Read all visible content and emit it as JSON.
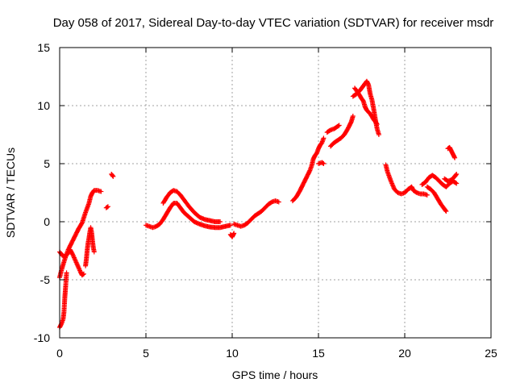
{
  "chart_data": {
    "type": "scatter",
    "title": "Day 058 of 2017, Sidereal Day-to-day VTEC variation (SDTVAR) for receiver msdr",
    "xlabel": "GPS time / hours",
    "ylabel": "SDTVAR / TECUs",
    "xlim": [
      0,
      25
    ],
    "ylim": [
      -10,
      15
    ],
    "xticks": [
      0,
      5,
      10,
      15,
      20,
      25
    ],
    "yticks": [
      -10,
      -5,
      0,
      5,
      10,
      15
    ],
    "xtick_labels": [
      "0",
      "5",
      "10",
      "15",
      "20",
      "25"
    ],
    "ytick_labels": [
      "-10",
      "-5",
      "0",
      "5",
      "10",
      "15"
    ],
    "grid": true,
    "marker": "+",
    "series": [
      {
        "color": "#ff0000",
        "segments": [
          [
            [
              0.0,
              -9.1
            ],
            [
              0.1,
              -8.8
            ],
            [
              0.2,
              -8.4
            ],
            [
              0.25,
              -7.8
            ],
            [
              0.3,
              -6.5
            ],
            [
              0.35,
              -5.5
            ],
            [
              0.4,
              -4.4
            ]
          ],
          [
            [
              0.0,
              -4.8
            ],
            [
              0.1,
              -4.2
            ],
            [
              0.2,
              -3.7
            ],
            [
              0.35,
              -3.0
            ],
            [
              0.5,
              -2.4
            ],
            [
              0.7,
              -1.8
            ],
            [
              0.9,
              -1.2
            ],
            [
              1.1,
              -0.6
            ],
            [
              1.3,
              -0.1
            ],
            [
              1.5,
              0.8
            ],
            [
              1.6,
              1.2
            ],
            [
              1.7,
              1.6
            ],
            [
              1.8,
              2.2
            ],
            [
              1.9,
              2.5
            ],
            [
              2.0,
              2.7
            ],
            [
              2.2,
              2.7
            ],
            [
              2.4,
              2.6
            ]
          ],
          [
            [
              0.0,
              -2.6
            ],
            [
              0.15,
              -2.9
            ],
            [
              0.3,
              -3.0
            ],
            [
              0.45,
              -2.8
            ],
            [
              0.6,
              -2.4
            ],
            [
              0.75,
              -2.8
            ],
            [
              0.9,
              -3.3
            ],
            [
              1.05,
              -3.8
            ],
            [
              1.2,
              -4.3
            ],
            [
              1.3,
              -4.6
            ],
            [
              1.4,
              -4.5
            ]
          ],
          [
            [
              1.5,
              -3.8
            ],
            [
              1.55,
              -3.2
            ],
            [
              1.6,
              -2.4
            ],
            [
              1.65,
              -1.8
            ],
            [
              1.7,
              -1.4
            ],
            [
              1.75,
              -0.9
            ],
            [
              1.8,
              -0.5
            ],
            [
              1.85,
              -0.9
            ],
            [
              1.9,
              -1.6
            ],
            [
              1.95,
              -2.2
            ],
            [
              2.0,
              -2.6
            ]
          ],
          [
            [
              2.7,
              1.2
            ],
            [
              2.8,
              1.3
            ]
          ],
          [
            [
              3.0,
              4.1
            ],
            [
              3.1,
              3.9
            ]
          ],
          [
            [
              5.0,
              -0.3
            ],
            [
              5.2,
              -0.4
            ],
            [
              5.4,
              -0.5
            ],
            [
              5.6,
              -0.4
            ],
            [
              5.8,
              -0.2
            ],
            [
              6.0,
              0.2
            ],
            [
              6.2,
              0.7
            ],
            [
              6.4,
              1.2
            ],
            [
              6.6,
              1.6
            ],
            [
              6.8,
              1.6
            ],
            [
              7.0,
              1.2
            ],
            [
              7.2,
              0.8
            ],
            [
              7.5,
              0.4
            ],
            [
              7.8,
              0.0
            ],
            [
              8.1,
              -0.2
            ],
            [
              8.4,
              -0.35
            ],
            [
              8.7,
              -0.45
            ],
            [
              9.0,
              -0.5
            ],
            [
              9.3,
              -0.5
            ],
            [
              9.6,
              -0.4
            ],
            [
              9.9,
              -0.3
            ]
          ],
          [
            [
              6.0,
              1.6
            ],
            [
              6.2,
              2.1
            ],
            [
              6.4,
              2.5
            ],
            [
              6.6,
              2.7
            ],
            [
              6.8,
              2.6
            ],
            [
              7.0,
              2.3
            ],
            [
              7.2,
              1.9
            ],
            [
              7.5,
              1.3
            ],
            [
              7.8,
              0.8
            ],
            [
              8.1,
              0.4
            ],
            [
              8.4,
              0.2
            ],
            [
              8.7,
              0.1
            ],
            [
              9.0,
              0.0
            ],
            [
              9.3,
              0.0
            ]
          ],
          [
            [
              9.9,
              -1.1
            ],
            [
              10.0,
              -1.3
            ],
            [
              10.1,
              -1.0
            ]
          ],
          [
            [
              10.1,
              -0.2
            ],
            [
              10.3,
              -0.3
            ],
            [
              10.5,
              -0.4
            ],
            [
              10.7,
              -0.3
            ],
            [
              10.9,
              -0.1
            ],
            [
              11.1,
              0.2
            ],
            [
              11.3,
              0.5
            ],
            [
              11.5,
              0.7
            ],
            [
              11.7,
              0.9
            ],
            [
              11.9,
              1.2
            ],
            [
              12.1,
              1.5
            ],
            [
              12.3,
              1.7
            ],
            [
              12.5,
              1.8
            ],
            [
              12.7,
              1.7
            ]
          ],
          [
            [
              13.5,
              1.8
            ],
            [
              13.7,
              2.1
            ],
            [
              13.9,
              2.6
            ],
            [
              14.1,
              3.2
            ],
            [
              14.3,
              3.8
            ],
            [
              14.5,
              4.4
            ],
            [
              14.6,
              4.8
            ],
            [
              14.7,
              5.4
            ],
            [
              14.8,
              5.7
            ],
            [
              14.9,
              5.9
            ],
            [
              15.0,
              6.3
            ],
            [
              15.1,
              6.6
            ],
            [
              15.2,
              6.8
            ],
            [
              15.3,
              7.2
            ]
          ],
          [
            [
              15.0,
              5.0
            ],
            [
              15.2,
              5.1
            ],
            [
              15.3,
              5.0
            ]
          ],
          [
            [
              15.5,
              7.7
            ],
            [
              15.7,
              7.9
            ],
            [
              15.9,
              8.0
            ],
            [
              16.1,
              8.2
            ],
            [
              16.2,
              8.3
            ]
          ],
          [
            [
              15.7,
              6.5
            ],
            [
              15.9,
              6.8
            ],
            [
              16.1,
              7.0
            ],
            [
              16.3,
              7.2
            ],
            [
              16.5,
              7.5
            ],
            [
              16.7,
              8.0
            ],
            [
              16.9,
              8.6
            ],
            [
              17.0,
              9.1
            ]
          ],
          [
            [
              17.0,
              10.8
            ],
            [
              17.2,
              11.0
            ],
            [
              17.4,
              11.3
            ],
            [
              17.5,
              11.5
            ],
            [
              17.6,
              11.7
            ],
            [
              17.7,
              11.9
            ],
            [
              17.8,
              12.1
            ],
            [
              17.9,
              11.8
            ],
            [
              18.0,
              11.0
            ],
            [
              18.1,
              10.5
            ],
            [
              18.2,
              9.7
            ],
            [
              18.3,
              8.8
            ],
            [
              18.4,
              8.0
            ],
            [
              18.5,
              7.5
            ]
          ],
          [
            [
              17.1,
              11.5
            ],
            [
              17.3,
              11.1
            ],
            [
              17.5,
              10.6
            ],
            [
              17.6,
              10.4
            ],
            [
              17.7,
              9.9
            ],
            [
              17.8,
              9.6
            ],
            [
              18.0,
              9.3
            ],
            [
              18.2,
              8.8
            ],
            [
              18.4,
              8.4
            ]
          ],
          [
            [
              18.9,
              4.9
            ],
            [
              19.0,
              4.3
            ],
            [
              19.2,
              3.5
            ],
            [
              19.4,
              2.8
            ],
            [
              19.6,
              2.5
            ],
            [
              19.8,
              2.4
            ],
            [
              20.0,
              2.5
            ],
            [
              20.2,
              2.8
            ],
            [
              20.4,
              3.0
            ],
            [
              20.5,
              2.7
            ],
            [
              20.7,
              2.5
            ],
            [
              20.9,
              2.4
            ],
            [
              21.1,
              2.4
            ],
            [
              21.3,
              2.3
            ]
          ],
          [
            [
              21.0,
              3.2
            ],
            [
              21.2,
              3.4
            ],
            [
              21.4,
              3.8
            ],
            [
              21.6,
              4.0
            ],
            [
              21.8,
              3.8
            ],
            [
              22.0,
              3.5
            ],
            [
              22.2,
              3.2
            ],
            [
              22.4,
              3.0
            ],
            [
              22.6,
              3.3
            ],
            [
              22.8,
              3.5
            ],
            [
              23.0,
              3.3
            ]
          ],
          [
            [
              21.3,
              3.0
            ],
            [
              21.5,
              2.8
            ],
            [
              21.7,
              2.5
            ],
            [
              21.9,
              2.0
            ],
            [
              22.1,
              1.5
            ],
            [
              22.3,
              1.1
            ],
            [
              22.4,
              0.9
            ]
          ],
          [
            [
              22.5,
              6.3
            ],
            [
              22.6,
              6.4
            ],
            [
              22.7,
              6.1
            ],
            [
              22.8,
              5.8
            ],
            [
              22.9,
              5.5
            ]
          ],
          [
            [
              22.3,
              3.7
            ],
            [
              22.5,
              3.5
            ],
            [
              22.7,
              3.6
            ],
            [
              22.9,
              3.9
            ],
            [
              23.0,
              4.1
            ]
          ]
        ]
      }
    ]
  }
}
